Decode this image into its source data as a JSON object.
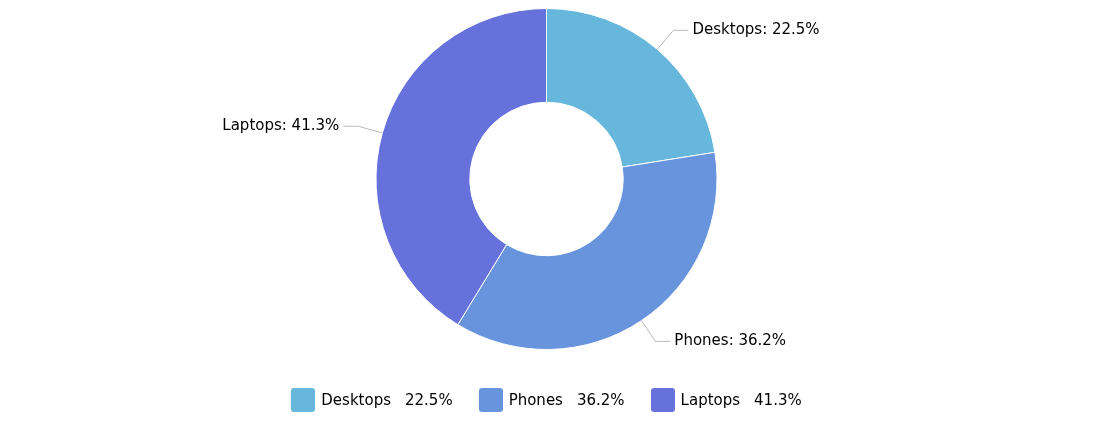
{
  "chart_data": {
    "type": "donut",
    "categories": [
      "Desktops",
      "Phones",
      "Laptops"
    ],
    "values": [
      22.5,
      36.2,
      41.3
    ],
    "value_labels": [
      "Desktops: 22.5%",
      "Phones: 36.2%",
      "Laptops: 41.3%"
    ],
    "annotations": [
      "22.5%",
      "36.2%",
      "41.3%"
    ],
    "colors": [
      "#67b7dc",
      "#6794dc",
      "#6771dc"
    ],
    "legend": "bottom"
  }
}
